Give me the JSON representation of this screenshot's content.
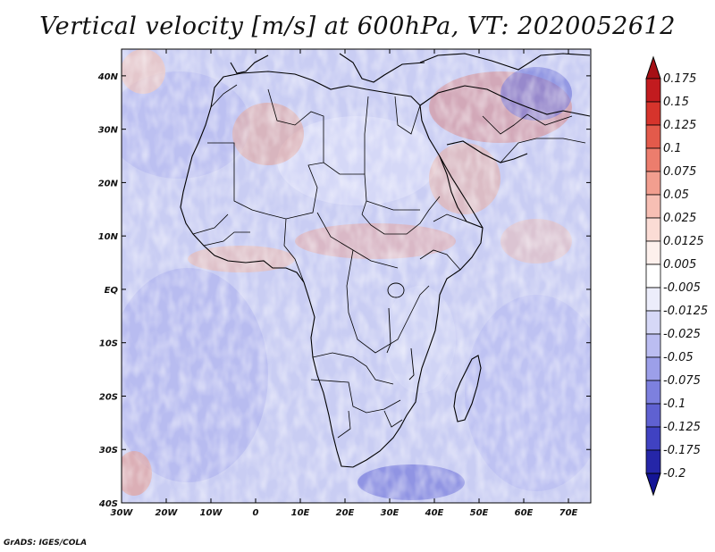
{
  "title": "Vertical velocity [m/s] at 600hPa, VT: 2020052612",
  "credit": "GrADS: IGES/COLA",
  "chart_data": {
    "type": "heatmap",
    "variable": "Vertical velocity",
    "units": "m/s",
    "level": "600hPa",
    "valid_time": "2020052612",
    "lon_range": [
      -30,
      75
    ],
    "lat_range": [
      -40,
      45
    ],
    "x_ticks": [
      {
        "value": -30,
        "label": "30W"
      },
      {
        "value": -20,
        "label": "20W"
      },
      {
        "value": -10,
        "label": "10W"
      },
      {
        "value": 0,
        "label": "0"
      },
      {
        "value": 10,
        "label": "10E"
      },
      {
        "value": 20,
        "label": "20E"
      },
      {
        "value": 30,
        "label": "30E"
      },
      {
        "value": 40,
        "label": "40E"
      },
      {
        "value": 50,
        "label": "50E"
      },
      {
        "value": 60,
        "label": "60E"
      },
      {
        "value": 70,
        "label": "70E"
      }
    ],
    "y_ticks": [
      {
        "value": 40,
        "label": "40N"
      },
      {
        "value": 30,
        "label": "30N"
      },
      {
        "value": 20,
        "label": "20N"
      },
      {
        "value": 10,
        "label": "10N"
      },
      {
        "value": 0,
        "label": "EQ"
      },
      {
        "value": -10,
        "label": "10S"
      },
      {
        "value": -20,
        "label": "20S"
      },
      {
        "value": -30,
        "label": "30S"
      },
      {
        "value": -40,
        "label": "40S"
      }
    ],
    "colorbar": {
      "labels": [
        "0.175",
        "0.15",
        "0.125",
        "0.1",
        "0.075",
        "0.05",
        "0.025",
        "0.0125",
        "0.005",
        "-0.005",
        "-0.0125",
        "-0.025",
        "-0.05",
        "-0.075",
        "-0.1",
        "-0.125",
        "-0.175",
        "-0.2"
      ],
      "colors": [
        "#a50f15",
        "#c21b1f",
        "#d6342c",
        "#e35a4b",
        "#ec7d6d",
        "#f29e8f",
        "#f7bfb4",
        "#fbdcd5",
        "#fdf0ec",
        "#ffffff",
        "#ecedfb",
        "#d6d8f7",
        "#bbbdf1",
        "#9c9fe9",
        "#7d80de",
        "#5f61d1",
        "#4042c2",
        "#2526a8",
        "#141596"
      ]
    }
  }
}
